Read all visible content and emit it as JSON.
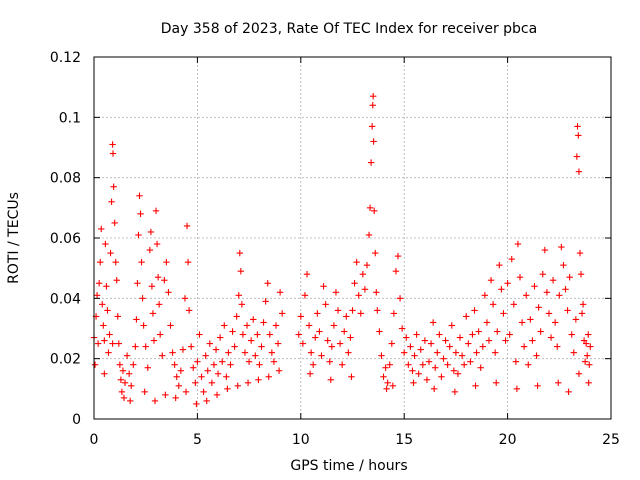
{
  "chart_data": {
    "type": "scatter",
    "title": "Day 358 of 2023, Rate Of TEC Index for receiver pbca",
    "xlabel": "GPS time / hours",
    "ylabel": "ROTI / TECUs",
    "xlim": [
      0,
      25
    ],
    "ylim": [
      0,
      0.12
    ],
    "xticks": [
      "0",
      "5",
      "10",
      "15",
      "20",
      "25"
    ],
    "yticks": [
      "0",
      "0.02",
      "0.04",
      "0.06",
      "0.08",
      "0.1",
      "0.12"
    ],
    "grid": true,
    "marker": "plus",
    "color": "#ff0000",
    "series": [
      {
        "points": [
          [
            0.0,
            0.027
          ],
          [
            0.1,
            0.034
          ],
          [
            0.15,
            0.041
          ],
          [
            0.2,
            0.025
          ],
          [
            0.25,
            0.045
          ],
          [
            0.3,
            0.052
          ],
          [
            0.35,
            0.063
          ],
          [
            0.4,
            0.038
          ],
          [
            0.45,
            0.031
          ],
          [
            0.5,
            0.026
          ],
          [
            0.55,
            0.058
          ],
          [
            0.6,
            0.044
          ],
          [
            0.65,
            0.036
          ],
          [
            0.7,
            0.022
          ],
          [
            0.75,
            0.028
          ],
          [
            0.8,
            0.055
          ],
          [
            0.85,
            0.072
          ],
          [
            0.9,
            0.091
          ],
          [
            0.92,
            0.088
          ],
          [
            0.95,
            0.077
          ],
          [
            1.0,
            0.065
          ],
          [
            1.05,
            0.052
          ],
          [
            1.1,
            0.046
          ],
          [
            1.15,
            0.034
          ],
          [
            1.2,
            0.025
          ],
          [
            1.25,
            0.018
          ],
          [
            1.3,
            0.013
          ],
          [
            1.35,
            0.009
          ],
          [
            1.4,
            0.016
          ],
          [
            1.5,
            0.012
          ],
          [
            1.6,
            0.021
          ],
          [
            1.7,
            0.015
          ],
          [
            1.8,
            0.011
          ],
          [
            1.9,
            0.018
          ],
          [
            2.0,
            0.024
          ],
          [
            2.05,
            0.033
          ],
          [
            2.1,
            0.045
          ],
          [
            2.15,
            0.061
          ],
          [
            2.2,
            0.074
          ],
          [
            2.25,
            0.068
          ],
          [
            2.3,
            0.052
          ],
          [
            2.35,
            0.04
          ],
          [
            2.4,
            0.031
          ],
          [
            2.5,
            0.024
          ],
          [
            2.6,
            0.017
          ],
          [
            2.7,
            0.056
          ],
          [
            2.75,
            0.062
          ],
          [
            2.8,
            0.044
          ],
          [
            2.85,
            0.035
          ],
          [
            2.9,
            0.026
          ],
          [
            3.0,
            0.069
          ],
          [
            3.05,
            0.058
          ],
          [
            3.1,
            0.047
          ],
          [
            3.15,
            0.038
          ],
          [
            3.2,
            0.028
          ],
          [
            3.3,
            0.021
          ],
          [
            3.4,
            0.046
          ],
          [
            3.5,
            0.052
          ],
          [
            3.6,
            0.042
          ],
          [
            3.7,
            0.031
          ],
          [
            3.8,
            0.022
          ],
          [
            3.9,
            0.018
          ],
          [
            4.0,
            0.014
          ],
          [
            4.1,
            0.011
          ],
          [
            4.2,
            0.016
          ],
          [
            4.3,
            0.023
          ],
          [
            4.4,
            0.04
          ],
          [
            4.5,
            0.064
          ],
          [
            4.55,
            0.052
          ],
          [
            4.6,
            0.036
          ],
          [
            4.7,
            0.024
          ],
          [
            4.8,
            0.017
          ],
          [
            4.9,
            0.012
          ],
          [
            5.0,
            0.019
          ],
          [
            5.1,
            0.028
          ],
          [
            5.2,
            0.014
          ],
          [
            5.3,
            0.009
          ],
          [
            5.4,
            0.021
          ],
          [
            5.5,
            0.016
          ],
          [
            5.6,
            0.025
          ],
          [
            5.7,
            0.012
          ],
          [
            5.8,
            0.018
          ],
          [
            5.9,
            0.023
          ],
          [
            6.0,
            0.015
          ],
          [
            6.1,
            0.027
          ],
          [
            6.2,
            0.019
          ],
          [
            6.3,
            0.031
          ],
          [
            6.4,
            0.014
          ],
          [
            6.5,
            0.022
          ],
          [
            6.6,
            0.018
          ],
          [
            6.7,
            0.029
          ],
          [
            6.8,
            0.024
          ],
          [
            6.9,
            0.034
          ],
          [
            7.0,
            0.041
          ],
          [
            7.05,
            0.055
          ],
          [
            7.1,
            0.049
          ],
          [
            7.15,
            0.038
          ],
          [
            7.2,
            0.028
          ],
          [
            7.3,
            0.022
          ],
          [
            7.4,
            0.031
          ],
          [
            7.5,
            0.019
          ],
          [
            7.6,
            0.026
          ],
          [
            7.7,
            0.033
          ],
          [
            7.8,
            0.021
          ],
          [
            7.9,
            0.028
          ],
          [
            8.0,
            0.018
          ],
          [
            8.1,
            0.024
          ],
          [
            8.2,
            0.032
          ],
          [
            8.3,
            0.039
          ],
          [
            8.4,
            0.045
          ],
          [
            8.5,
            0.028
          ],
          [
            8.6,
            0.022
          ],
          [
            8.7,
            0.019
          ],
          [
            8.8,
            0.031
          ],
          [
            8.9,
            0.025
          ],
          [
            9.0,
            0.042
          ],
          [
            9.1,
            0.035
          ],
          [
            9.9,
            0.028
          ],
          [
            10.0,
            0.034
          ],
          [
            10.1,
            0.025
          ],
          [
            10.2,
            0.041
          ],
          [
            10.3,
            0.048
          ],
          [
            10.4,
            0.031
          ],
          [
            10.5,
            0.022
          ],
          [
            10.6,
            0.018
          ],
          [
            10.7,
            0.027
          ],
          [
            10.8,
            0.035
          ],
          [
            10.9,
            0.029
          ],
          [
            11.0,
            0.021
          ],
          [
            11.1,
            0.044
          ],
          [
            11.2,
            0.038
          ],
          [
            11.3,
            0.026
          ],
          [
            11.4,
            0.019
          ],
          [
            11.5,
            0.024
          ],
          [
            11.6,
            0.031
          ],
          [
            11.7,
            0.042
          ],
          [
            11.8,
            0.036
          ],
          [
            11.9,
            0.025
          ],
          [
            12.0,
            0.018
          ],
          [
            12.1,
            0.029
          ],
          [
            12.2,
            0.034
          ],
          [
            12.3,
            0.022
          ],
          [
            12.4,
            0.027
          ],
          [
            12.5,
            0.036
          ],
          [
            12.6,
            0.045
          ],
          [
            12.7,
            0.052
          ],
          [
            12.8,
            0.041
          ],
          [
            12.9,
            0.035
          ],
          [
            13.0,
            0.048
          ],
          [
            13.1,
            0.043
          ],
          [
            13.2,
            0.051
          ],
          [
            13.3,
            0.061
          ],
          [
            13.35,
            0.07
          ],
          [
            13.4,
            0.085
          ],
          [
            13.45,
            0.097
          ],
          [
            13.48,
            0.104
          ],
          [
            13.5,
            0.107
          ],
          [
            13.52,
            0.092
          ],
          [
            13.55,
            0.069
          ],
          [
            13.6,
            0.055
          ],
          [
            13.65,
            0.042
          ],
          [
            13.7,
            0.036
          ],
          [
            13.8,
            0.029
          ],
          [
            13.9,
            0.021
          ],
          [
            14.0,
            0.014
          ],
          [
            14.1,
            0.017
          ],
          [
            14.2,
            0.012
          ],
          [
            14.3,
            0.018
          ],
          [
            14.4,
            0.025
          ],
          [
            14.5,
            0.035
          ],
          [
            14.6,
            0.049
          ],
          [
            14.7,
            0.054
          ],
          [
            14.8,
            0.04
          ],
          [
            14.9,
            0.03
          ],
          [
            15.0,
            0.022
          ],
          [
            15.1,
            0.027
          ],
          [
            15.2,
            0.018
          ],
          [
            15.3,
            0.024
          ],
          [
            15.4,
            0.016
          ],
          [
            15.5,
            0.021
          ],
          [
            15.6,
            0.028
          ],
          [
            15.7,
            0.015
          ],
          [
            15.8,
            0.023
          ],
          [
            15.9,
            0.018
          ],
          [
            16.0,
            0.026
          ],
          [
            16.1,
            0.013
          ],
          [
            16.2,
            0.019
          ],
          [
            16.3,
            0.025
          ],
          [
            16.4,
            0.032
          ],
          [
            16.5,
            0.017
          ],
          [
            16.6,
            0.022
          ],
          [
            16.7,
            0.028
          ],
          [
            16.8,
            0.014
          ],
          [
            16.9,
            0.02
          ],
          [
            17.0,
            0.026
          ],
          [
            17.1,
            0.018
          ],
          [
            17.2,
            0.024
          ],
          [
            17.3,
            0.031
          ],
          [
            17.4,
            0.016
          ],
          [
            17.5,
            0.022
          ],
          [
            17.6,
            0.015
          ],
          [
            17.7,
            0.027
          ],
          [
            17.8,
            0.021
          ],
          [
            17.9,
            0.018
          ],
          [
            18.0,
            0.034
          ],
          [
            18.1,
            0.025
          ],
          [
            18.2,
            0.019
          ],
          [
            18.3,
            0.028
          ],
          [
            18.4,
            0.036
          ],
          [
            18.5,
            0.022
          ],
          [
            18.6,
            0.029
          ],
          [
            18.7,
            0.017
          ],
          [
            18.8,
            0.024
          ],
          [
            18.9,
            0.041
          ],
          [
            19.0,
            0.032
          ],
          [
            19.1,
            0.026
          ],
          [
            19.2,
            0.046
          ],
          [
            19.3,
            0.038
          ],
          [
            19.4,
            0.022
          ],
          [
            19.5,
            0.029
          ],
          [
            19.6,
            0.051
          ],
          [
            19.7,
            0.043
          ],
          [
            19.8,
            0.035
          ],
          [
            19.9,
            0.026
          ],
          [
            20.0,
            0.045
          ],
          [
            20.1,
            0.028
          ],
          [
            20.2,
            0.053
          ],
          [
            20.3,
            0.038
          ],
          [
            20.4,
            0.019
          ],
          [
            20.5,
            0.058
          ],
          [
            20.6,
            0.047
          ],
          [
            20.7,
            0.032
          ],
          [
            20.8,
            0.024
          ],
          [
            20.9,
            0.041
          ],
          [
            21.0,
            0.018
          ],
          [
            21.1,
            0.033
          ],
          [
            21.2,
            0.026
          ],
          [
            21.3,
            0.044
          ],
          [
            21.4,
            0.021
          ],
          [
            21.5,
            0.037
          ],
          [
            21.6,
            0.029
          ],
          [
            21.7,
            0.048
          ],
          [
            21.8,
            0.056
          ],
          [
            21.9,
            0.042
          ],
          [
            22.0,
            0.035
          ],
          [
            22.1,
            0.027
          ],
          [
            22.2,
            0.046
          ],
          [
            22.3,
            0.032
          ],
          [
            22.4,
            0.024
          ],
          [
            22.5,
            0.041
          ],
          [
            22.6,
            0.057
          ],
          [
            22.7,
            0.051
          ],
          [
            22.8,
            0.043
          ],
          [
            22.9,
            0.036
          ],
          [
            23.0,
            0.047
          ],
          [
            23.1,
            0.028
          ],
          [
            23.2,
            0.022
          ],
          [
            23.3,
            0.033
          ],
          [
            23.35,
            0.087
          ],
          [
            23.38,
            0.097
          ],
          [
            23.42,
            0.094
          ],
          [
            23.45,
            0.082
          ],
          [
            23.5,
            0.055
          ],
          [
            23.55,
            0.048
          ],
          [
            23.6,
            0.035
          ],
          [
            23.65,
            0.038
          ],
          [
            23.7,
            0.026
          ],
          [
            23.75,
            0.019
          ],
          [
            23.8,
            0.025
          ],
          [
            23.85,
            0.021
          ],
          [
            23.9,
            0.028
          ],
          [
            23.95,
            0.018
          ],
          [
            24.0,
            0.024
          ],
          [
            0.05,
            0.018
          ],
          [
            0.5,
            0.015
          ],
          [
            0.9,
            0.025
          ],
          [
            1.45,
            0.007
          ],
          [
            1.75,
            0.006
          ],
          [
            2.45,
            0.009
          ],
          [
            2.95,
            0.006
          ],
          [
            3.45,
            0.008
          ],
          [
            3.95,
            0.007
          ],
          [
            4.45,
            0.009
          ],
          [
            4.95,
            0.005
          ],
          [
            5.45,
            0.006
          ],
          [
            5.95,
            0.008
          ],
          [
            6.45,
            0.01
          ],
          [
            6.95,
            0.011
          ],
          [
            7.45,
            0.012
          ],
          [
            7.95,
            0.013
          ],
          [
            8.45,
            0.014
          ],
          [
            8.95,
            0.016
          ],
          [
            10.45,
            0.015
          ],
          [
            11.45,
            0.013
          ],
          [
            12.45,
            0.014
          ],
          [
            14.15,
            0.01
          ],
          [
            14.45,
            0.011
          ],
          [
            15.45,
            0.012
          ],
          [
            16.45,
            0.01
          ],
          [
            17.45,
            0.009
          ],
          [
            18.45,
            0.011
          ],
          [
            19.45,
            0.012
          ],
          [
            20.45,
            0.01
          ],
          [
            21.45,
            0.011
          ],
          [
            22.45,
            0.012
          ],
          [
            22.95,
            0.009
          ],
          [
            23.45,
            0.015
          ],
          [
            23.92,
            0.012
          ]
        ]
      }
    ]
  }
}
